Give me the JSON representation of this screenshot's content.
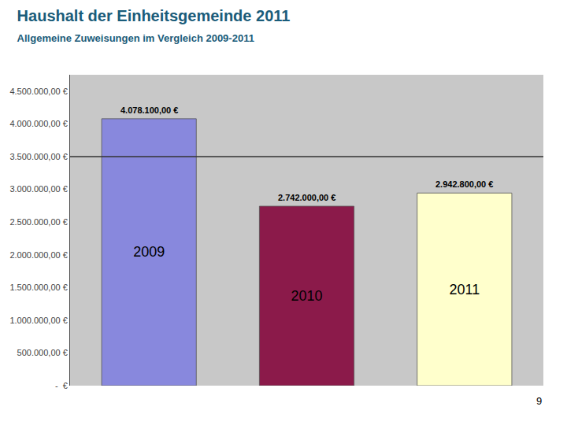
{
  "chart_data": {
    "type": "bar",
    "title": "Haushalt der Einheitsgemeinde 2011",
    "subtitle": "Allgemeine Zuweisungen im Vergleich 2009-2011",
    "categories": [
      "2009",
      "2010",
      "2011"
    ],
    "values": [
      4078100,
      2742000,
      2942800
    ],
    "value_labels": [
      "4.078.100,00 €",
      "2.742.000,00 €",
      "2.942.800,00 €"
    ],
    "data_labels": true,
    "colors": [
      "#8888dd",
      "#8b1a4a",
      "#ffffcc"
    ],
    "ylim": [
      0,
      4750000
    ],
    "yticks": [
      {
        "value": 0,
        "label": "-  €"
      },
      {
        "value": 500000,
        "label": "500.000,00 €"
      },
      {
        "value": 1000000,
        "label": "1.000.000,00 €"
      },
      {
        "value": 1500000,
        "label": "1.500.000,00 €"
      },
      {
        "value": 2000000,
        "label": "2.000.000,00 €"
      },
      {
        "value": 2500000,
        "label": "2.500.000,00 €"
      },
      {
        "value": 3000000,
        "label": "3.000.000,00 €"
      },
      {
        "value": 3500000,
        "label": "3.500.000,00 €"
      },
      {
        "value": 4000000,
        "label": "4.000.000,00 €"
      },
      {
        "value": 4500000,
        "label": "4.500.000,00 €"
      }
    ],
    "hline": {
      "y": 3500000,
      "color": "#333333"
    },
    "grid": false,
    "tick_labels": "y",
    "annotations": [
      "9"
    ]
  }
}
